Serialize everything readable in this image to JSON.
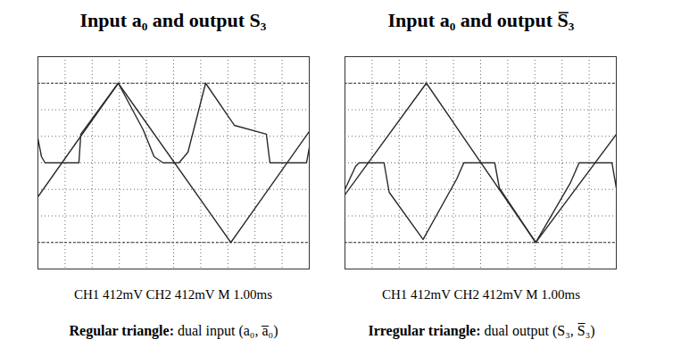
{
  "chart_data": [
    {
      "type": "line",
      "title": "Input a₀ and output S₃",
      "caption": "CH1 412mV CH2 412mV M 1.00ms",
      "note": {
        "label": "Regular triangle:",
        "text": "dual input (a₀, a̅₀)"
      },
      "xlim": [
        0,
        10
      ],
      "xticks": [
        0,
        1,
        2,
        3,
        4,
        5,
        6,
        7,
        8,
        9,
        10
      ],
      "ylim": [
        -1648,
        1648
      ],
      "yticks": [
        -1648,
        -1236,
        -824,
        -412,
        0,
        412,
        824,
        1236,
        1648
      ],
      "cursors": [
        -1236,
        1236
      ],
      "grid": true,
      "tick_labels": false,
      "series": [
        {
          "name": "a₀",
          "color": "#2a2a2a",
          "x": [
            0,
            2.96,
            7.11,
            10
          ],
          "values": [
            -527,
            1236,
            -1236,
            486
          ]
        },
        {
          "name": "S₃",
          "color": "#2a2a2a",
          "x": [
            0,
            0.13,
            0.26,
            1.51,
            1.58,
            2.96,
            3.88,
            4.28,
            4.61,
            5.2,
            5.53,
            6.18,
            7.24,
            8.42,
            8.55,
            9.9,
            10
          ],
          "values": [
            374,
            97,
            0,
            0,
            444,
            1236,
            512,
            97,
            0,
            0,
            166,
            1236,
            582,
            444,
            0,
            0,
            235
          ]
        }
      ]
    },
    {
      "type": "line",
      "title": "Input a₀ and output S̅₃",
      "caption": "CH1 412mV CH2 412mV M 1.00ms",
      "note": {
        "label": "Irregular triangle:",
        "text": "dual output (S₃, S̅₃)"
      },
      "xlim": [
        0,
        10
      ],
      "xticks": [
        0,
        1,
        2,
        3,
        4,
        5,
        6,
        7,
        8,
        9,
        10
      ],
      "ylim": [
        -1648,
        1648
      ],
      "yticks": [
        -1648,
        -1236,
        -824,
        -412,
        0,
        412,
        824,
        1236,
        1648
      ],
      "cursors": [
        -1236,
        1236
      ],
      "grid": true,
      "tick_labels": false,
      "series": [
        {
          "name": "a₀",
          "color": "#2a2a2a",
          "x": [
            0,
            3.0,
            7.03,
            10
          ],
          "values": [
            -494,
            1236,
            -1236,
            441
          ]
        },
        {
          "name": "S̅₃",
          "color": "#2a2a2a",
          "x": [
            0,
            0.39,
            0.52,
            1.44,
            1.63,
            2.88,
            4.12,
            4.38,
            5.52,
            5.69,
            7.03,
            8.3,
            8.63,
            9.84,
            10
          ],
          "values": [
            -412,
            -55,
            0,
            0,
            -457,
            -1190,
            -249,
            0,
            0,
            -388,
            -1236,
            -318,
            0,
            0,
            -388
          ]
        }
      ]
    }
  ]
}
